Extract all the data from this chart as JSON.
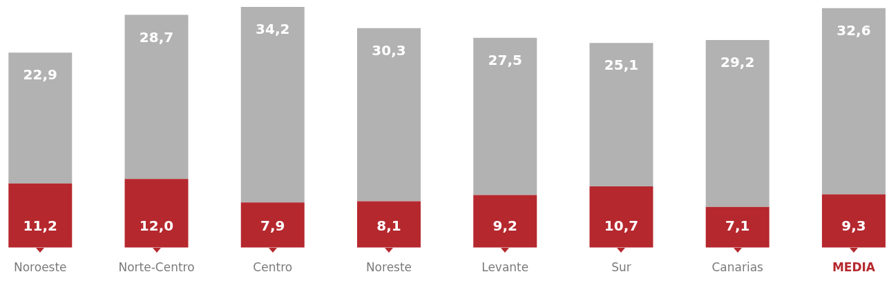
{
  "chart_data": {
    "type": "bar",
    "stacked": true,
    "categories": [
      "Noroeste",
      "Norte-Centro",
      "Centro",
      "Noreste",
      "Levante",
      "Sur",
      "Canarias",
      "MEDIA"
    ],
    "series": [
      {
        "color": "#b5282e",
        "values": [
          11.2,
          12.0,
          7.9,
          8.1,
          9.2,
          10.7,
          7.1,
          9.3
        ],
        "value_labels": [
          "11,2",
          "12,0",
          "7,9",
          "8,1",
          "9,2",
          "10,7",
          "7,1",
          "9,3"
        ]
      },
      {
        "color": "#b2b2b2",
        "values": [
          22.9,
          28.7,
          34.2,
          30.3,
          27.5,
          25.1,
          29.2,
          32.6
        ],
        "value_labels": [
          "22,9",
          "28,7",
          "34,2",
          "30,3",
          "27,5",
          "25,1",
          "29,2",
          "32,6"
        ]
      }
    ],
    "tick_labels": "x",
    "legend": false
  }
}
